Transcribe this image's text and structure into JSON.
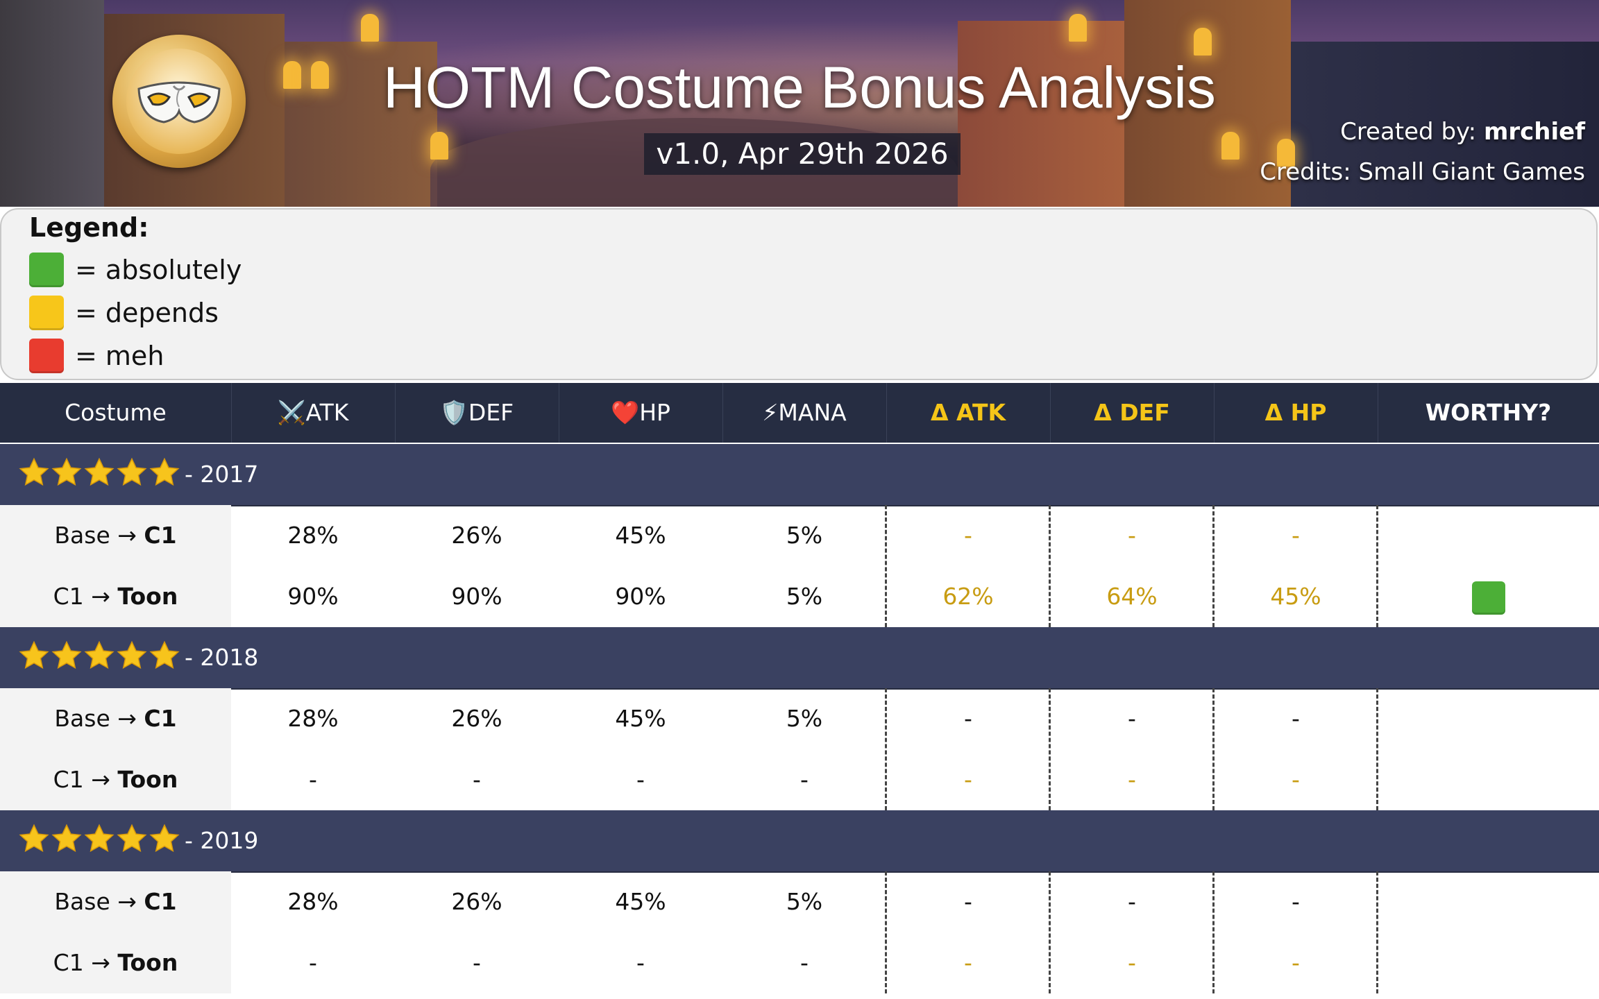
{
  "banner": {
    "title": "HOTM Costume Bonus Analysis",
    "version": "v1.0, Apr 29th 2026",
    "created_prefix": "Created by: ",
    "created_by": "mrchief",
    "credits": "Credits: Small Giant Games",
    "logo_icon": "carnival-mask-icon"
  },
  "legend": {
    "title": "Legend:",
    "items": [
      {
        "color": "#4caf37",
        "text": "= absolutely"
      },
      {
        "color": "#f7c61a",
        "text": "= depends"
      },
      {
        "color": "#e83c2f",
        "text": "= meh"
      }
    ]
  },
  "columns": {
    "costume": "Costume",
    "atk_icon": "⚔️",
    "atk": "ATK",
    "def_icon": "🛡️",
    "def": "DEF",
    "hp_icon": "❤️",
    "hp": "HP",
    "mana_icon": "⚡",
    "mana": "MANA",
    "d_atk": "Δ ATK",
    "d_def": "Δ DEF",
    "d_hp": "Δ HP",
    "worthy": "WORTHY?"
  },
  "groups": [
    {
      "label": "- 2017",
      "stars": 5,
      "rows": [
        {
          "from": "Base → ",
          "to": "C1",
          "atk": "28%",
          "def": "26%",
          "hp": "45%",
          "mana": "5%",
          "d_atk": "-",
          "d_def": "-",
          "d_hp": "-",
          "worthy": ""
        },
        {
          "from": "C1 → ",
          "to": "Toon",
          "atk": "90%",
          "def": "90%",
          "hp": "90%",
          "mana": "5%",
          "d_atk": "62%",
          "d_def": "64%",
          "d_hp": "45%",
          "worthy": "green"
        }
      ]
    },
    {
      "label": "- 2018",
      "stars": 5,
      "rows": [
        {
          "from": "Base → ",
          "to": "C1",
          "atk": "28%",
          "def": "26%",
          "hp": "45%",
          "mana": "5%",
          "d_atk": "-",
          "d_def": "-",
          "d_hp": "-",
          "worthy": ""
        },
        {
          "from": "C1 → ",
          "to": "Toon",
          "atk": "-",
          "def": "-",
          "hp": "-",
          "mana": "-",
          "d_atk": "-",
          "d_def": "-",
          "d_hp": "-",
          "worthy": ""
        }
      ]
    },
    {
      "label": "- 2019",
      "stars": 5,
      "rows": [
        {
          "from": "Base → ",
          "to": "C1",
          "atk": "28%",
          "def": "26%",
          "hp": "45%",
          "mana": "5%",
          "d_atk": "-",
          "d_def": "-",
          "d_hp": "-",
          "worthy": ""
        },
        {
          "from": "C1 → ",
          "to": "Toon",
          "atk": "-",
          "def": "-",
          "hp": "-",
          "mana": "-",
          "d_atk": "-",
          "d_def": "-",
          "d_hp": "-",
          "worthy": ""
        }
      ]
    }
  ]
}
